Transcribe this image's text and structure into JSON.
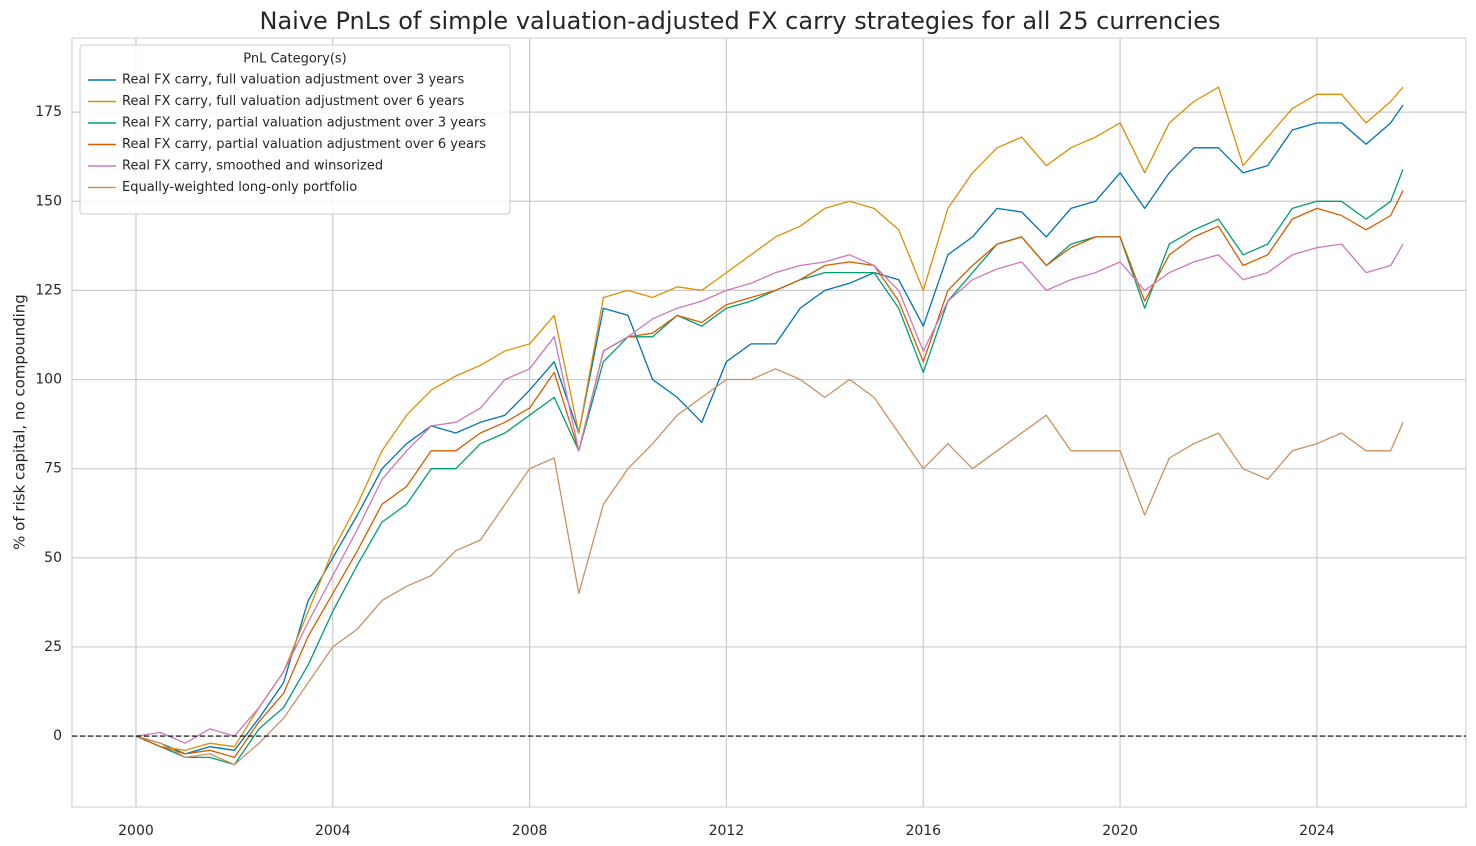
{
  "chart_data": {
    "type": "line",
    "title": "Naive PnLs of simple valuation-adjusted FX carry strategies for all 25 currencies",
    "y_label": "% of risk capital, no compounding",
    "legend_title": "PnL Category(s)",
    "legend_position": "upper left",
    "grid": true,
    "hline": 0,
    "xlim": [
      1998.7,
      2027.03
    ],
    "ylim": [
      -19.9,
      195.8
    ],
    "xticks": [
      2000,
      2004,
      2008,
      2012,
      2016,
      2020,
      2024
    ],
    "yticks": [
      0,
      25,
      50,
      75,
      100,
      125,
      150,
      175
    ],
    "x": [
      2000,
      2000.5,
      2001,
      2001.5,
      2002,
      2002.5,
      2003,
      2003.5,
      2004,
      2004.5,
      2005,
      2005.5,
      2006,
      2006.5,
      2007,
      2007.5,
      2008,
      2008.5,
      2009,
      2009.5,
      2010,
      2010.5,
      2011,
      2011.5,
      2012,
      2012.5,
      2013,
      2013.5,
      2014,
      2014.5,
      2015,
      2015.5,
      2016,
      2016.5,
      2017,
      2017.5,
      2018,
      2018.5,
      2019,
      2019.5,
      2020,
      2020.5,
      2021,
      2021.5,
      2022,
      2022.5,
      2023,
      2023.5,
      2024,
      2024.5,
      2025,
      2025.5,
      2025.75
    ],
    "series": [
      {
        "name": "Real FX carry, full valuation adjustment over 3 years",
        "color": "#0173b2",
        "values": [
          0,
          -2,
          -5,
          -3,
          -4,
          5,
          15,
          38,
          50,
          62,
          75,
          82,
          87,
          85,
          88,
          90,
          97,
          105,
          85,
          120,
          118,
          100,
          95,
          88,
          105,
          110,
          110,
          120,
          125,
          127,
          130,
          128,
          115,
          135,
          140,
          148,
          147,
          140,
          148,
          150,
          158,
          148,
          158,
          165,
          165,
          158,
          160,
          170,
          172,
          172,
          166,
          172,
          177
        ]
      },
      {
        "name": "Real FX carry, full valuation adjustment over 6 years",
        "color": "#de8f05",
        "values": [
          0,
          -3,
          -4,
          -2,
          -3,
          8,
          18,
          35,
          52,
          65,
          80,
          90,
          97,
          101,
          104,
          108,
          110,
          118,
          85,
          123,
          125,
          123,
          126,
          125,
          130,
          135,
          140,
          143,
          148,
          150,
          148,
          142,
          125,
          148,
          158,
          165,
          168,
          160,
          165,
          168,
          172,
          158,
          172,
          178,
          182,
          160,
          168,
          176,
          180,
          180,
          172,
          178,
          182
        ]
      },
      {
        "name": "Real FX carry, partial valuation adjustment over 3 years",
        "color": "#029e73",
        "values": [
          0,
          -3,
          -6,
          -6,
          -8,
          2,
          8,
          20,
          35,
          48,
          60,
          65,
          75,
          75,
          82,
          85,
          90,
          95,
          80,
          105,
          112,
          112,
          118,
          115,
          120,
          122,
          125,
          128,
          130,
          130,
          130,
          120,
          102,
          122,
          130,
          138,
          140,
          132,
          138,
          140,
          140,
          120,
          138,
          142,
          145,
          135,
          138,
          148,
          150,
          150,
          145,
          150,
          159
        ]
      },
      {
        "name": "Real FX carry, partial valuation adjustment over 6 years",
        "color": "#d55e00",
        "values": [
          0,
          -3,
          -5,
          -4,
          -6,
          4,
          12,
          28,
          40,
          52,
          65,
          70,
          80,
          80,
          85,
          88,
          92,
          102,
          80,
          108,
          112,
          113,
          118,
          116,
          121,
          123,
          125,
          128,
          132,
          133,
          132,
          122,
          105,
          125,
          132,
          138,
          140,
          132,
          137,
          140,
          140,
          122,
          135,
          140,
          143,
          132,
          135,
          145,
          148,
          146,
          142,
          146,
          153
        ]
      },
      {
        "name": "Real FX carry, smoothed and winsorized",
        "color": "#cc78bc",
        "values": [
          0,
          1,
          -2,
          2,
          0,
          8,
          18,
          32,
          45,
          58,
          72,
          80,
          87,
          88,
          92,
          100,
          103,
          112,
          80,
          108,
          112,
          117,
          120,
          122,
          125,
          127,
          130,
          132,
          133,
          135,
          132,
          125,
          108,
          122,
          128,
          131,
          133,
          125,
          128,
          130,
          133,
          125,
          130,
          133,
          135,
          128,
          130,
          135,
          137,
          138,
          130,
          132,
          138
        ]
      },
      {
        "name": "Equally-weighted long-only portfolio",
        "color": "#ca9161",
        "values": [
          0,
          -2,
          -6,
          -5,
          -8,
          -2,
          5,
          15,
          25,
          30,
          38,
          42,
          45,
          52,
          55,
          65,
          75,
          78,
          40,
          65,
          75,
          82,
          90,
          95,
          100,
          100,
          103,
          100,
          95,
          100,
          95,
          85,
          75,
          82,
          75,
          80,
          85,
          90,
          80,
          80,
          80,
          62,
          78,
          82,
          85,
          75,
          72,
          80,
          82,
          85,
          80,
          80,
          88
        ]
      }
    ]
  }
}
